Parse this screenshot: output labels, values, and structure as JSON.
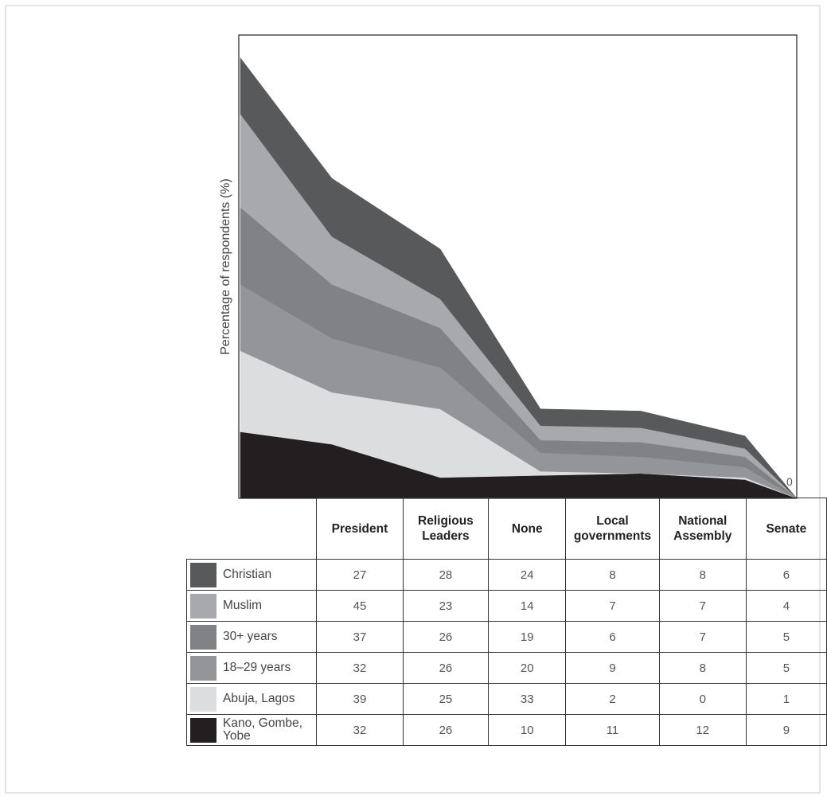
{
  "chart_data": {
    "type": "area",
    "stacked": true,
    "ylabel": "Percentage of respondents (%)",
    "zero_label": "0",
    "categories": [
      "President",
      "Religious\nLeaders",
      "None",
      "Local\ngovernments",
      "National\nAssembly",
      "Senate"
    ],
    "series": [
      {
        "name": "Kano, Gombe,\nYobe",
        "color": "#231f20",
        "values": [
          32,
          26,
          10,
          11,
          12,
          9
        ]
      },
      {
        "name": "Abuja, Lagos",
        "color": "#dcdddf",
        "values": [
          39,
          25,
          33,
          2,
          0,
          1
        ]
      },
      {
        "name": "18–29 years",
        "color": "#939598",
        "values": [
          32,
          26,
          20,
          9,
          8,
          5
        ]
      },
      {
        "name": "30+ years",
        "color": "#808285",
        "values": [
          37,
          26,
          19,
          6,
          7,
          5
        ]
      },
      {
        "name": "Muslim",
        "color": "#a7a9ac",
        "values": [
          45,
          23,
          14,
          7,
          7,
          4
        ]
      },
      {
        "name": "Christian",
        "color": "#58595b",
        "values": [
          27,
          28,
          24,
          8,
          8,
          6
        ]
      }
    ],
    "table_row_order": [
      "Christian",
      "Muslim",
      "30+ years",
      "18–29 years",
      "Abuja, Lagos",
      "Kano, Gombe,\nYobe"
    ],
    "grid": false,
    "legend": "table-below"
  }
}
